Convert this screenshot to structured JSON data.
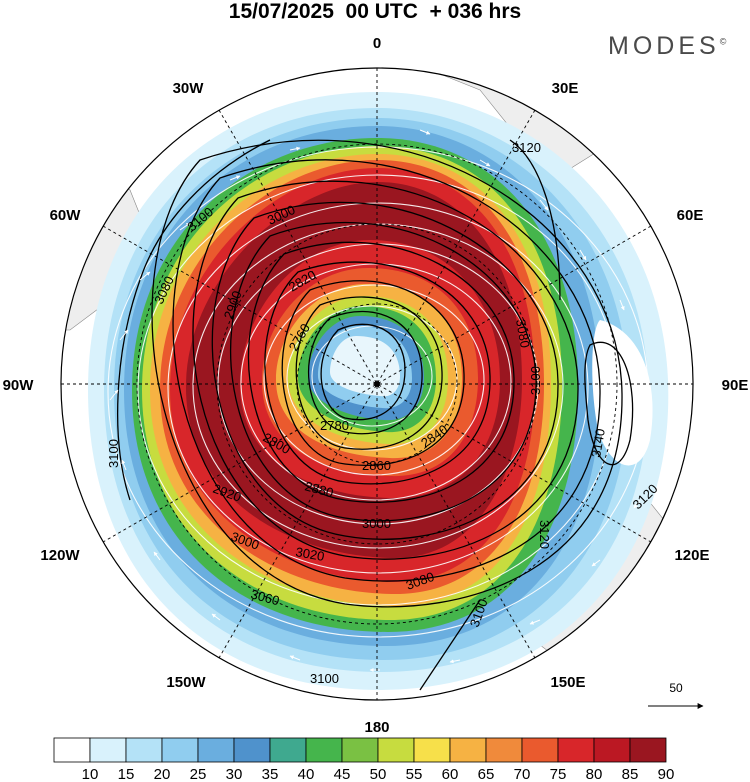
{
  "title": "15/07/2025  00 UTC  + 036 hrs",
  "brand": "MODES",
  "brand_mark": "©",
  "longitude_labels": [
    {
      "key": "0",
      "text": "0"
    },
    {
      "key": "30E",
      "text": "30E"
    },
    {
      "key": "60E",
      "text": "60E"
    },
    {
      "key": "90E",
      "text": "90E"
    },
    {
      "key": "120E",
      "text": "120E"
    },
    {
      "key": "150E",
      "text": "150E"
    },
    {
      "key": "180",
      "text": "180"
    },
    {
      "key": "150W",
      "text": "150W"
    },
    {
      "key": "120W",
      "text": "120W"
    },
    {
      "key": "90W",
      "text": "90W"
    },
    {
      "key": "60W",
      "text": "60W"
    },
    {
      "key": "30W",
      "text": "30W"
    }
  ],
  "contour_labels": [
    "2760",
    "2780",
    "2800",
    "2820",
    "2840",
    "2860",
    "2880",
    "2900",
    "2920",
    "3000",
    "3020",
    "3060",
    "3080",
    "3100",
    "3120",
    "3140"
  ],
  "colorbar": {
    "labels": [
      "10",
      "15",
      "20",
      "25",
      "30",
      "35",
      "40",
      "45",
      "50",
      "55",
      "60",
      "65",
      "70",
      "75",
      "80",
      "85",
      "90"
    ],
    "colors": [
      "#ffffff",
      "#d9f2fc",
      "#b4e2f7",
      "#90cdef",
      "#6aaedf",
      "#4f92cc",
      "#3fa98f",
      "#45b54c",
      "#7ac143",
      "#c7dc3f",
      "#f7e04a",
      "#f6b243",
      "#f08a3b",
      "#ea5a2e",
      "#d8262a",
      "#bb1823",
      "#9a1620"
    ]
  },
  "reference_vector": {
    "value": "50"
  }
}
